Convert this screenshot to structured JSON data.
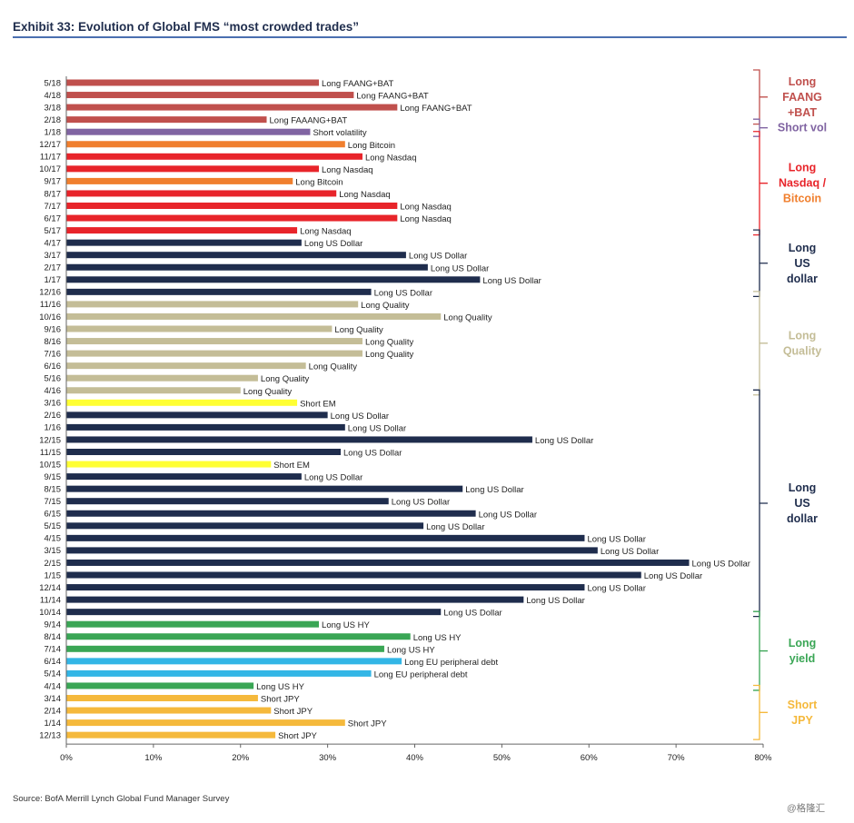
{
  "title": "Exhibit 33: Evolution of Global FMS “most crowded trades”",
  "source": "Source: BofA Merrill Lynch Global Fund Manager Survey",
  "watermark": "@格隆汇",
  "colors": {
    "faang": "#c0504d",
    "vol": "#8064a2",
    "nasdaq": "#e8242a",
    "bitcoin": "#f07f2e",
    "usd": "#1f2d4d",
    "quality": "#c4bd97",
    "em": "#ffff33",
    "hy": "#3aa655",
    "eu": "#33b6e6",
    "jpy": "#f5b93c"
  },
  "chart_data": {
    "type": "bar",
    "orientation": "horizontal",
    "xlim": [
      0,
      80
    ],
    "x_ticks": [
      "0%",
      "10%",
      "20%",
      "30%",
      "40%",
      "50%",
      "60%",
      "70%",
      "80%"
    ],
    "grid": false,
    "categories": [
      "5/18",
      "4/18",
      "3/18",
      "2/18",
      "1/18",
      "12/17",
      "11/17",
      "10/17",
      "9/17",
      "8/17",
      "7/17",
      "6/17",
      "5/17",
      "4/17",
      "3/17",
      "2/17",
      "1/17",
      "12/16",
      "11/16",
      "10/16",
      "9/16",
      "8/16",
      "7/16",
      "6/16",
      "5/16",
      "4/16",
      "3/16",
      "2/16",
      "1/16",
      "12/15",
      "11/15",
      "10/15",
      "9/15",
      "8/15",
      "7/15",
      "6/15",
      "5/15",
      "4/15",
      "3/15",
      "2/15",
      "1/15",
      "12/14",
      "11/14",
      "10/14",
      "9/14",
      "8/14",
      "7/14",
      "6/14",
      "5/14",
      "4/14",
      "3/14",
      "2/14",
      "1/14",
      "12/13"
    ],
    "values": [
      29,
      33,
      38,
      23,
      28,
      32,
      34,
      29,
      26,
      31,
      38,
      38,
      26.5,
      27,
      39,
      41.5,
      47.5,
      35,
      33.5,
      43,
      30.5,
      34,
      34,
      27.5,
      22,
      20,
      26.5,
      30,
      32,
      53.5,
      31.5,
      23.5,
      27,
      45.5,
      37,
      47,
      41,
      59.5,
      61,
      71.5,
      66,
      59.5,
      52.5,
      43,
      29,
      39.5,
      36.5,
      38.5,
      35,
      21.5,
      22,
      23.5,
      32,
      24
    ],
    "labels": [
      "Long FAANG+BAT",
      "Long FAANG+BAT",
      "Long FAANG+BAT",
      "Long FAAANG+BAT",
      "Short volatility",
      "Long Bitcoin",
      "Long Nasdaq",
      "Long Nasdaq",
      "Long Bitcoin",
      "Long Nasdaq",
      "Long Nasdaq",
      "Long Nasdaq",
      "Long Nasdaq",
      "Long US Dollar",
      "Long US Dollar",
      "Long US Dollar",
      "Long US Dollar",
      "Long US Dollar",
      "Long Quality",
      "Long Quality",
      "Long Quality",
      "Long Quality",
      "Long Quality",
      "Long Quality",
      "Long Quality",
      "Long Quality",
      "Short EM",
      "Long US Dollar",
      "Long US Dollar",
      "Long US Dollar",
      "Long US Dollar",
      "Short EM",
      "Long US Dollar",
      "Long US Dollar",
      "Long US Dollar",
      "Long US Dollar",
      "Long US Dollar",
      "Long US Dollar",
      "Long US Dollar",
      "Long US Dollar",
      "Long US Dollar",
      "Long US Dollar",
      "Long US Dollar",
      "Long US Dollar",
      "Long US HY",
      "Long US HY",
      "Long US HY",
      "Long EU peripheral debt",
      "Long EU peripheral debt",
      "Long US HY",
      "Short JPY",
      "Short JPY",
      "Short JPY",
      "Short JPY"
    ],
    "bar_colors": [
      "faang",
      "faang",
      "faang",
      "faang",
      "vol",
      "bitcoin",
      "nasdaq",
      "nasdaq",
      "bitcoin",
      "nasdaq",
      "nasdaq",
      "nasdaq",
      "nasdaq",
      "usd",
      "usd",
      "usd",
      "usd",
      "usd",
      "quality",
      "quality",
      "quality",
      "quality",
      "quality",
      "quality",
      "quality",
      "quality",
      "em",
      "usd",
      "usd",
      "usd",
      "usd",
      "em",
      "usd",
      "usd",
      "usd",
      "usd",
      "usd",
      "usd",
      "usd",
      "usd",
      "usd",
      "usd",
      "usd",
      "usd",
      "hy",
      "hy",
      "hy",
      "eu",
      "eu",
      "hy",
      "jpy",
      "jpy",
      "jpy",
      "jpy"
    ],
    "groups": [
      {
        "lines": [
          "Long",
          "FAANG",
          "+BAT"
        ],
        "colors": [
          "faang",
          "faang",
          "faang"
        ],
        "start": 0,
        "end": 3
      },
      {
        "lines": [
          "Short vol"
        ],
        "colors": [
          "vol"
        ],
        "start": 4,
        "end": 4
      },
      {
        "lines": [
          "Long",
          "Nasdaq /",
          "Bitcoin"
        ],
        "colors": [
          "nasdaq",
          "nasdaq",
          "bitcoin"
        ],
        "start": 5,
        "end": 12
      },
      {
        "lines": [
          "Long",
          "US",
          "dollar"
        ],
        "colors": [
          "usd",
          "usd",
          "usd"
        ],
        "start": 13,
        "end": 17
      },
      {
        "lines": [
          "Long",
          "Quality"
        ],
        "colors": [
          "quality",
          "quality"
        ],
        "start": 18,
        "end": 25
      },
      {
        "lines": [
          "Long",
          "US",
          "dollar"
        ],
        "colors": [
          "usd",
          "usd",
          "usd"
        ],
        "start": 26,
        "end": 43
      },
      {
        "lines": [
          "Long",
          "yield"
        ],
        "colors": [
          "hy",
          "hy"
        ],
        "start": 44,
        "end": 49
      },
      {
        "lines": [
          "Short",
          "JPY"
        ],
        "colors": [
          "jpy",
          "jpy"
        ],
        "start": 50,
        "end": 53
      }
    ]
  }
}
